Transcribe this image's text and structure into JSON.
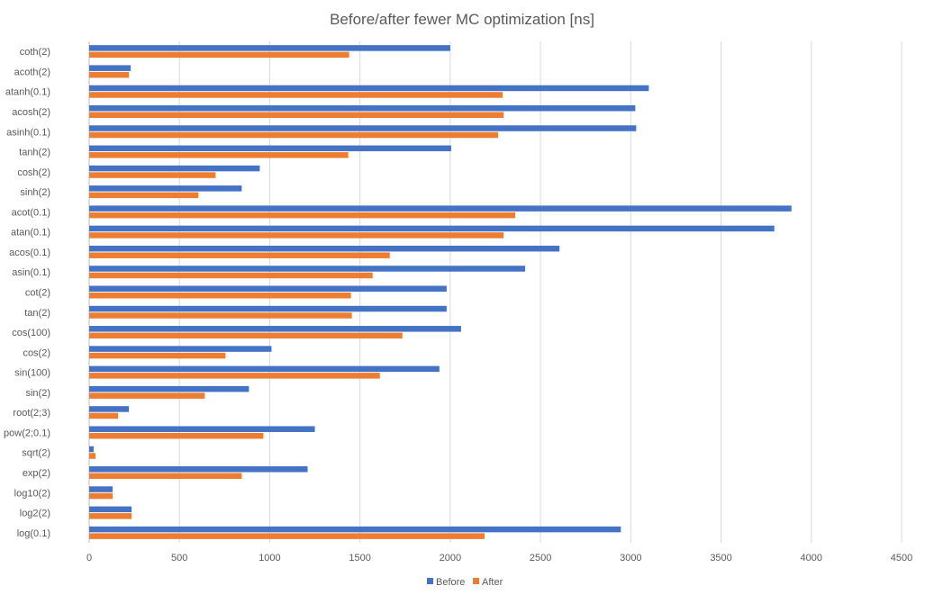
{
  "chart_data": {
    "type": "bar",
    "orientation": "horizontal",
    "title": "Before/after fewer MC optimization [ns]",
    "xlabel": "",
    "ylabel": "",
    "xlim": [
      0,
      4500
    ],
    "xticks": [
      0,
      500,
      1000,
      1500,
      2000,
      2500,
      3000,
      3500,
      4000,
      4500
    ],
    "grid": true,
    "legend_position": "bottom",
    "categories": [
      "coth(2)",
      "acoth(2)",
      "atanh(0.1)",
      "acosh(2)",
      "asinh(0.1)",
      "tanh(2)",
      "cosh(2)",
      "sinh(2)",
      "acot(0.1)",
      "atan(0.1)",
      "acos(0.1)",
      "asin(0.1)",
      "cot(2)",
      "tan(2)",
      "cos(100)",
      "cos(2)",
      "sin(100)",
      "sin(2)",
      "root(2;3)",
      "pow(2;0.1)",
      "sqrt(2)",
      "exp(2)",
      "log10(2)",
      "log2(2)",
      "log(0.1)"
    ],
    "series": [
      {
        "name": "Before",
        "color": "#4472C4",
        "values": [
          2000,
          230,
          3100,
          3025,
          3030,
          2005,
          945,
          845,
          3890,
          3795,
          2605,
          2415,
          1980,
          1980,
          2060,
          1010,
          1940,
          885,
          220,
          1250,
          25,
          1210,
          130,
          235,
          2945
        ]
      },
      {
        "name": "After",
        "color": "#ED7D31",
        "values": [
          1440,
          220,
          2290,
          2295,
          2265,
          1435,
          700,
          605,
          2360,
          2295,
          1665,
          1570,
          1450,
          1455,
          1735,
          755,
          1610,
          640,
          160,
          965,
          35,
          845,
          130,
          235,
          2190
        ]
      }
    ]
  }
}
